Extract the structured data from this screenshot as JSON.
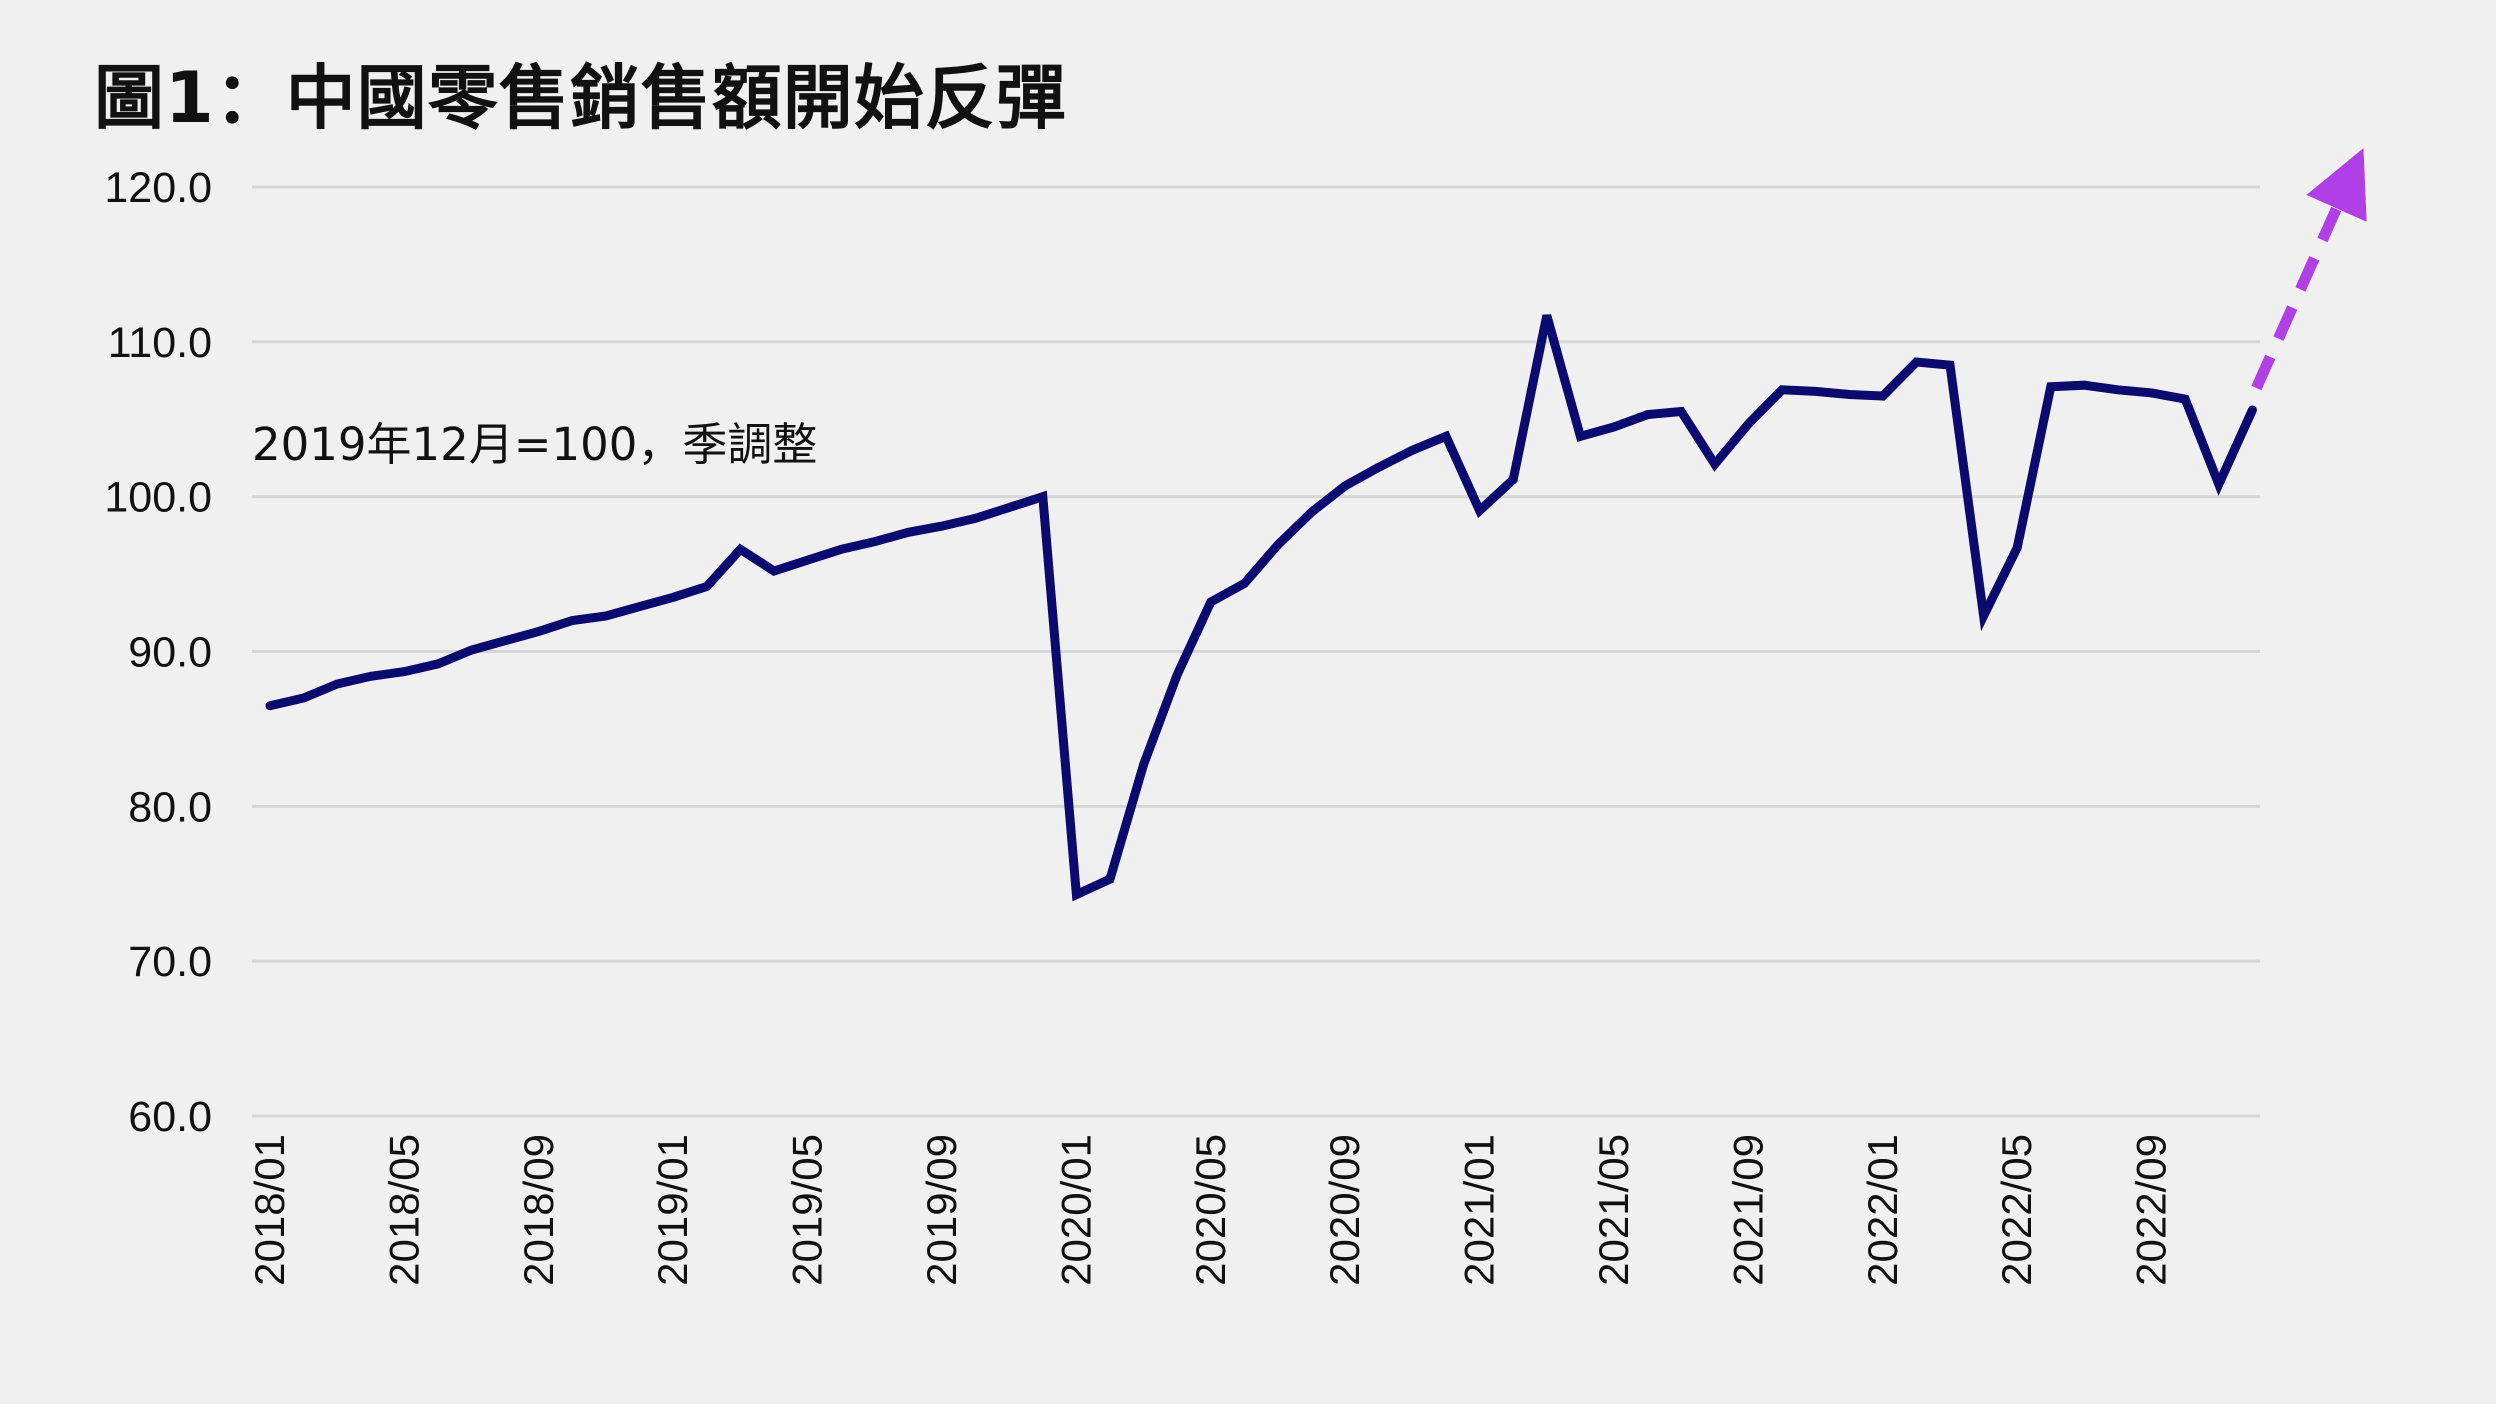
{
  "title": "圖1：中國零售銷售額開始反彈",
  "chart_data": {
    "type": "line",
    "title": "圖1：中國零售銷售額開始反彈",
    "annotation": "2019年12月=100，季調整",
    "ylim": [
      60,
      120
    ],
    "yticks": [
      60,
      70,
      80,
      90,
      100,
      110,
      120
    ],
    "ytick_labels": [
      "60.0",
      "70.0",
      "80.0",
      "90.0",
      "100.0",
      "110.0",
      "120.0"
    ],
    "xtick_labels": [
      "2018/01",
      "2018/05",
      "2018/09",
      "2019/01",
      "2019/05",
      "2019/09",
      "2020/01",
      "2020/05",
      "2020/09",
      "2021/01",
      "2021/05",
      "2021/09",
      "2022/01",
      "2022/05",
      "2022/09"
    ],
    "x": [
      "2018/01",
      "2018/02",
      "2018/03",
      "2018/04",
      "2018/05",
      "2018/06",
      "2018/07",
      "2018/08",
      "2018/09",
      "2018/10",
      "2018/11",
      "2018/12",
      "2019/01",
      "2019/02",
      "2019/03",
      "2019/04",
      "2019/05",
      "2019/06",
      "2019/07",
      "2019/08",
      "2019/09",
      "2019/10",
      "2019/11",
      "2019/12",
      "2020/01",
      "2020/02",
      "2020/03",
      "2020/04",
      "2020/05",
      "2020/06",
      "2020/07",
      "2020/08",
      "2020/09",
      "2020/10",
      "2020/11",
      "2020/12",
      "2021/01",
      "2021/02",
      "2021/03",
      "2021/04",
      "2021/05",
      "2021/06",
      "2021/07",
      "2021/08",
      "2021/09",
      "2021/10",
      "2021/11",
      "2021/12",
      "2022/01",
      "2022/02",
      "2022/03",
      "2022/04",
      "2022/05",
      "2022/06",
      "2022/07",
      "2022/08",
      "2022/09",
      "2022/10",
      "2022/11",
      "2022/12"
    ],
    "series": [
      {
        "values": [
          86.5,
          87.0,
          87.9,
          88.4,
          88.7,
          89.2,
          90.1,
          90.7,
          91.3,
          92.0,
          92.3,
          92.9,
          93.5,
          94.2,
          96.6,
          95.2,
          95.9,
          96.6,
          97.1,
          97.7,
          98.1,
          98.6,
          99.3,
          100.0,
          74.3,
          75.3,
          82.7,
          88.5,
          93.2,
          94.4,
          96.9,
          99.0,
          100.7,
          101.9,
          103.0,
          103.9,
          99.1,
          101.1,
          111.7,
          103.9,
          104.5,
          105.3,
          105.5,
          102.1,
          104.7,
          106.9,
          106.8,
          106.6,
          106.5,
          108.7,
          108.5,
          92.3,
          96.7,
          107.1,
          107.2,
          106.9,
          106.7,
          106.3,
          100.8,
          105.6
        ]
      }
    ],
    "trend_arrow": {
      "from": 105.6,
      "to": 122.5
    },
    "colors": {
      "line": "#0b0a6e",
      "arrow": "#b13fe6",
      "grid": "#d6d6d6",
      "background": "#f0f0f0"
    },
    "grid": true
  }
}
